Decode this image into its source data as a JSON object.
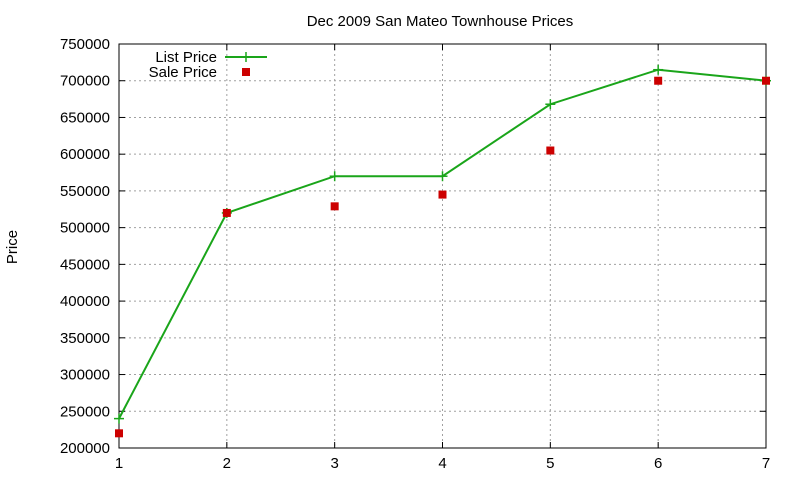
{
  "chart_data": {
    "type": "line",
    "title": "Dec 2009 San Mateo Townhouse Prices",
    "xlabel": "",
    "ylabel": "Price",
    "x": [
      1,
      2,
      3,
      4,
      5,
      6,
      7
    ],
    "xlim": [
      1,
      7
    ],
    "ylim": [
      200000,
      750000
    ],
    "yticks": [
      200000,
      250000,
      300000,
      350000,
      400000,
      450000,
      500000,
      550000,
      600000,
      650000,
      700000,
      750000
    ],
    "grid": true,
    "legend_position": "top-left",
    "series": [
      {
        "name": "List Price",
        "style": "line+plus",
        "color": "#1aa51a",
        "values": [
          240000,
          520000,
          570000,
          570000,
          668000,
          715000,
          700000
        ]
      },
      {
        "name": "Sale Price",
        "style": "square-points",
        "color": "#cc0000",
        "values": [
          220000,
          520000,
          529000,
          545000,
          605000,
          700000,
          700000
        ]
      }
    ]
  }
}
